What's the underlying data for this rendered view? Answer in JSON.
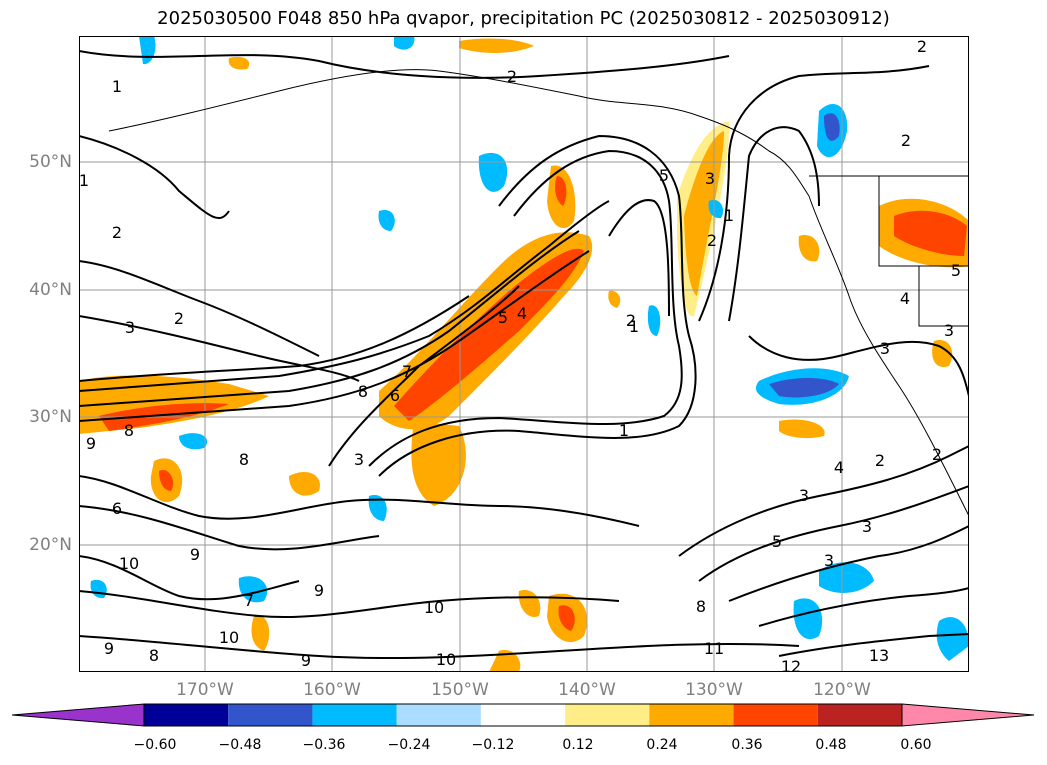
{
  "title": "2025030500 F048 850 hPa qvapor, precipitation PC (2025030812 - 2025030912)",
  "lat_labels": [
    "50°N",
    "40°N",
    "30°N",
    "20°N"
  ],
  "lon_labels": [
    "170°W",
    "160°W",
    "150°W",
    "140°W",
    "130°W",
    "120°W"
  ],
  "colorbar": {
    "colors": [
      "#9933cc",
      "#000099",
      "#3355cc",
      "#00bbff",
      "#aaddff",
      "#ffffff",
      "#ffee88",
      "#ffaa00",
      "#ff4400",
      "#bb2222",
      "#ff88aa"
    ],
    "labels": [
      "−0.60",
      "−0.48",
      "−0.36",
      "−0.24",
      "−0.12",
      "0.12",
      "0.24",
      "0.36",
      "0.48",
      "0.60"
    ]
  },
  "contour_labels": [
    "1",
    "2",
    "2",
    "3",
    "2",
    "5",
    "4",
    "7",
    "8",
    "6",
    "8",
    "9",
    "8",
    "3",
    "5",
    "1",
    "1",
    "6",
    "9",
    "10",
    "9",
    "10",
    "7",
    "9",
    "9",
    "8",
    "10",
    "8",
    "11",
    "12",
    "13",
    "10",
    "5",
    "3",
    "4",
    "2",
    "3",
    "3",
    "2",
    "3",
    "4",
    "3",
    "1",
    "2",
    "2",
    "5",
    "3",
    "2",
    "1",
    "2"
  ],
  "colors": {
    "positive_dark": "#ff4400",
    "positive_mid": "#ffaa00",
    "positive_light": "#ffee88",
    "negative_mid": "#00bbff",
    "negative_dark": "#3355cc",
    "negative_light": "#aaddff",
    "grid": "#999999"
  }
}
